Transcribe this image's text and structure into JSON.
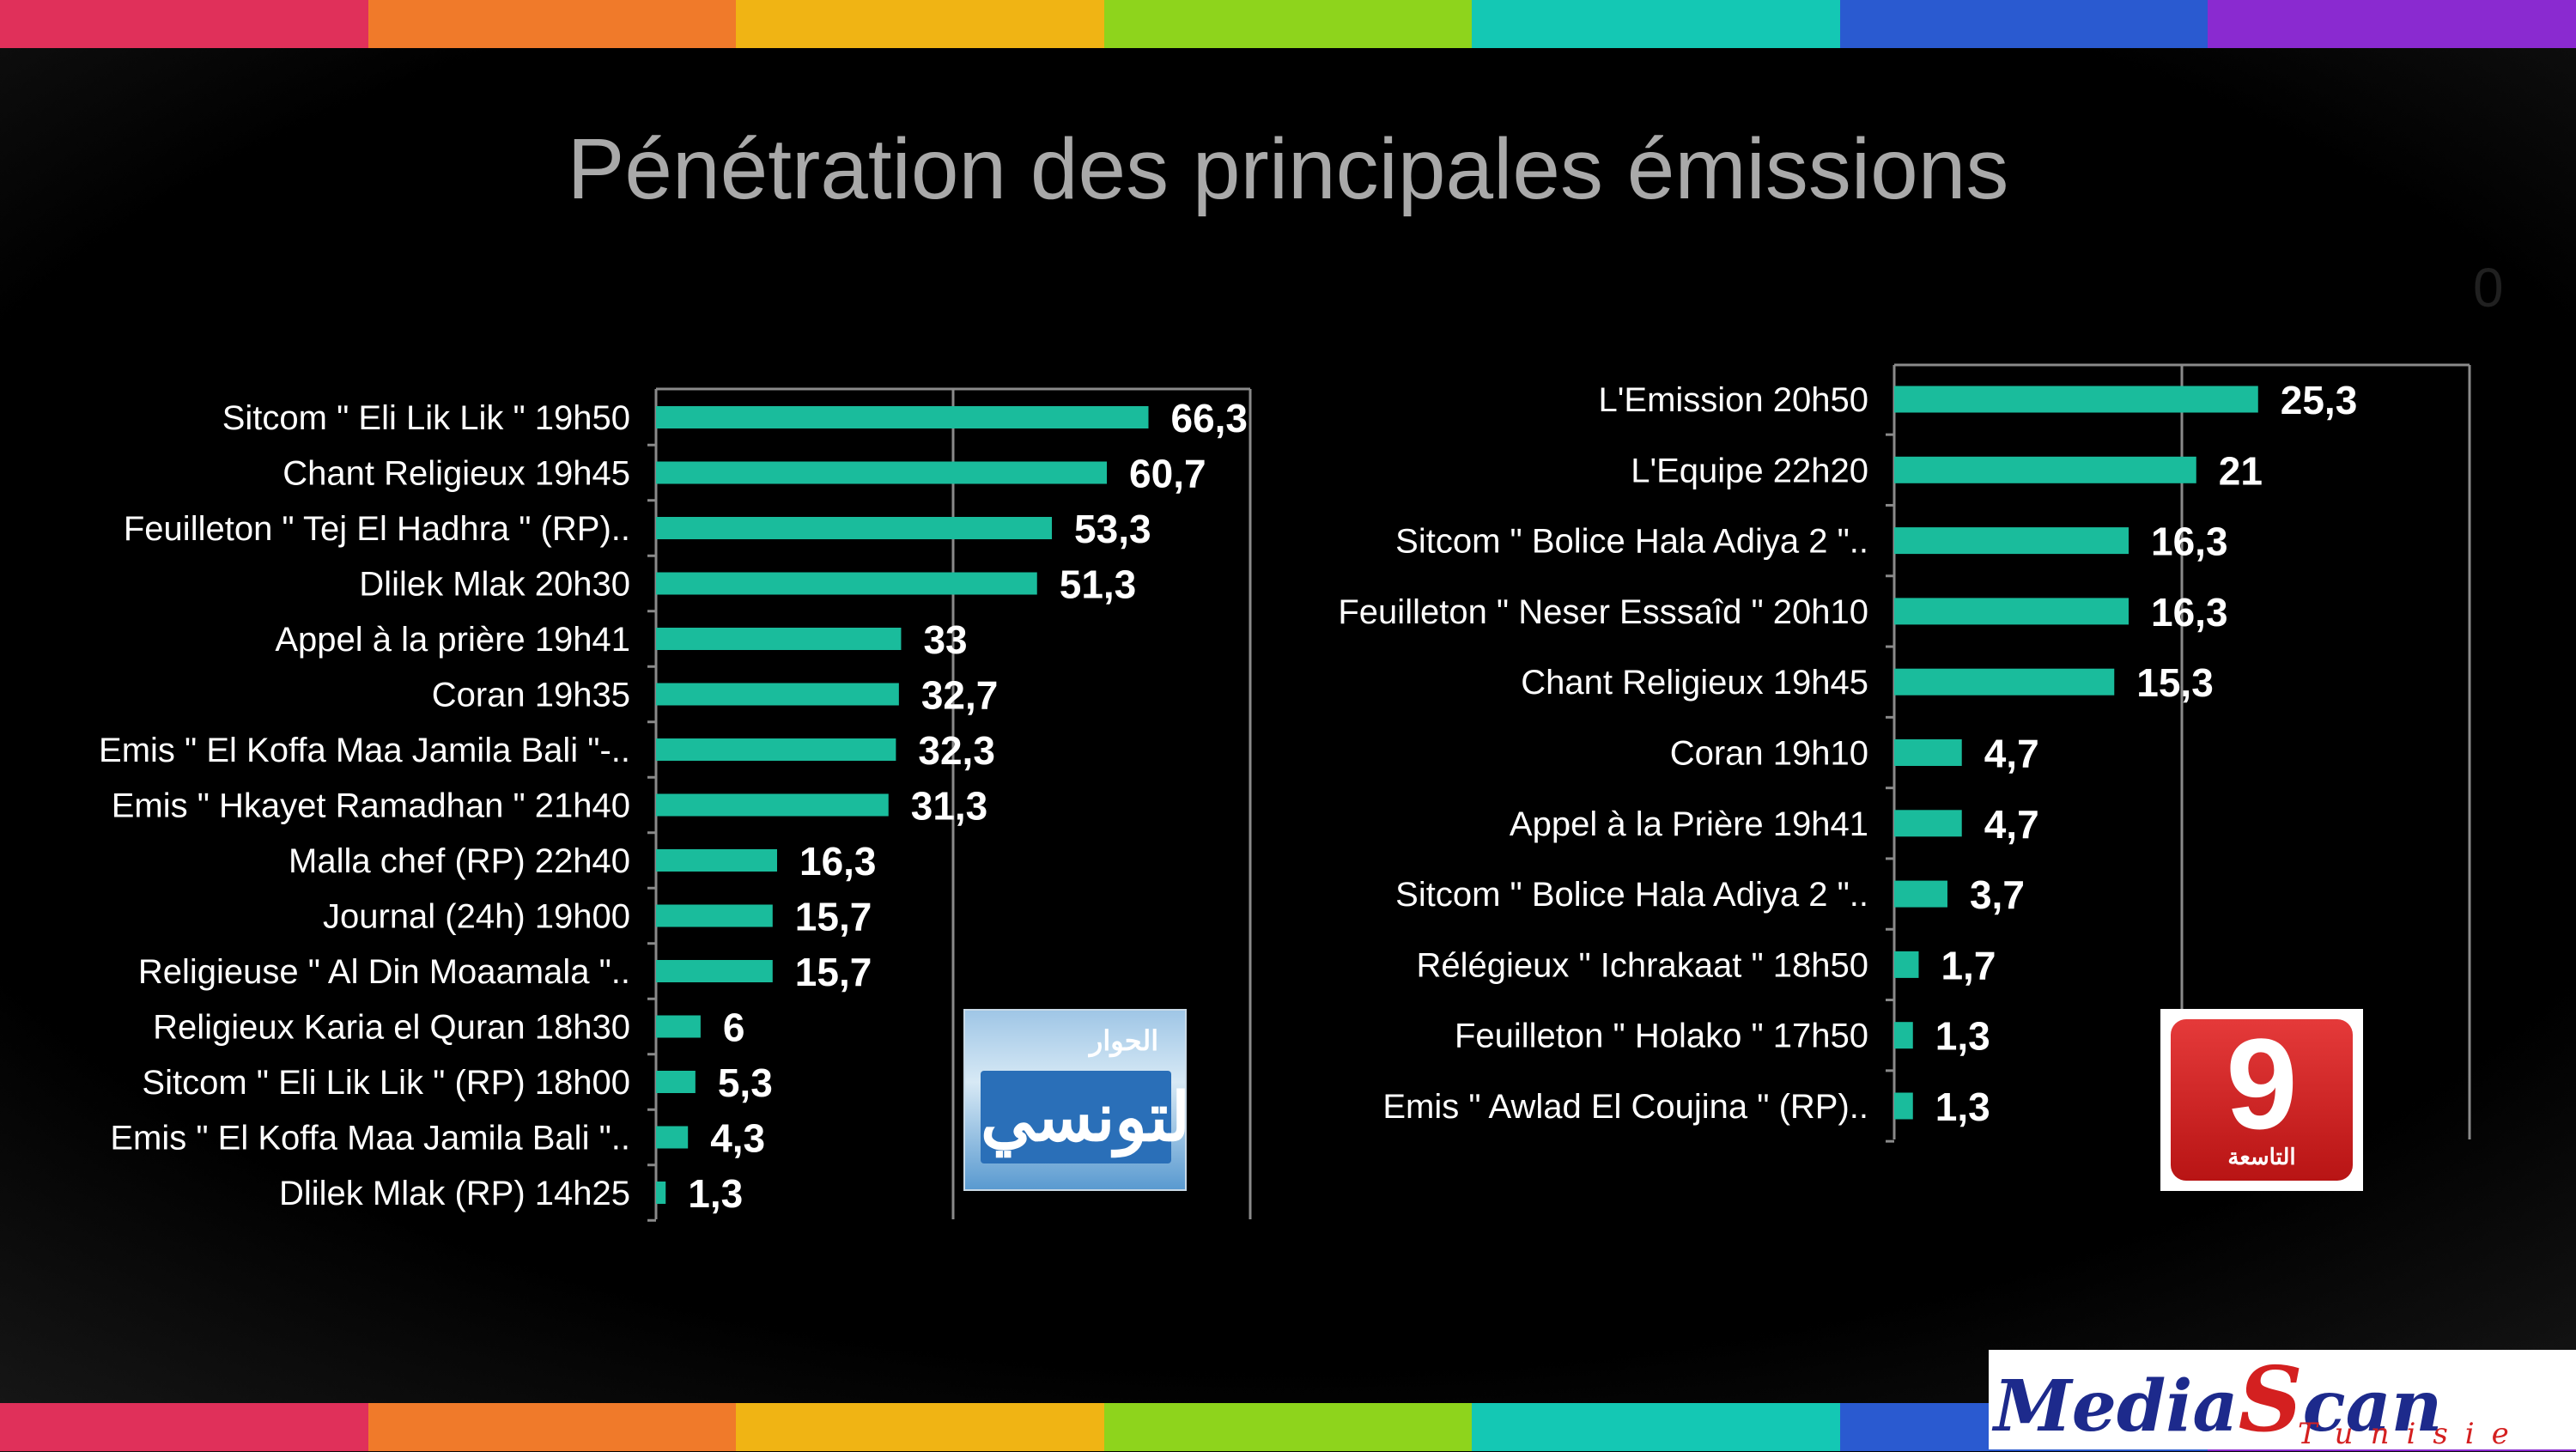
{
  "slide": {
    "title": "Pénétration des principales émissions",
    "stray_char": "0",
    "stripe_colors": [
      "#e0305a",
      "#f07a2a",
      "#f0b414",
      "#8ed41c",
      "#14c8b4",
      "#2a5ad0",
      "#8a2ad0"
    ]
  },
  "logos": {
    "left": {
      "top_text": "الحوار",
      "sign_text": "التونسي"
    },
    "right": {
      "numeral": "9",
      "word": "التاسعة"
    },
    "mediascan": {
      "media": "Media",
      "s": "S",
      "can": "can",
      "tagline": "Tunisie"
    }
  },
  "colors": {
    "bar": "#1abc9c",
    "text": "#ffffff",
    "title": "#a9a9a9",
    "grid": "#8a8a8a"
  },
  "chart_data": [
    {
      "type": "bar",
      "orientation": "horizontal",
      "title": "",
      "xlabel": "",
      "ylabel": "",
      "xlim": [
        0,
        80
      ],
      "grid": true,
      "categories": [
        "Sitcom \" Eli Lik Lik \" 19h50",
        "Chant Religieux  19h45",
        "Feuilleton \" Tej El Hadhra \" (RP)..",
        "Dlilek Mlak 20h30",
        "Appel à la prière  19h41",
        "Coran 19h35",
        "Emis \" El Koffa Maa Jamila Bali \"-..",
        "Emis \" Hkayet Ramadhan \" 21h40",
        "Malla chef (RP) 22h40",
        "Journal (24h)  19h00",
        "Religieuse \" Al Din Moaamala \"..",
        "Religieux Karia el Quran  18h30",
        "Sitcom \" Eli Lik Lik \" (RP) 18h00",
        "Emis \" El Koffa Maa Jamila Bali \"..",
        "Dlilek Mlak (RP) 14h25"
      ],
      "values": [
        66.3,
        60.7,
        53.3,
        51.3,
        33,
        32.7,
        32.3,
        31.3,
        16.3,
        15.7,
        15.7,
        6,
        5.3,
        4.3,
        1.3
      ],
      "labels": [
        "66,3",
        "60,7",
        "53,3",
        "51,3",
        "33",
        "32,7",
        "32,3",
        "31,3",
        "16,3",
        "15,7",
        "15,7",
        "6",
        "5,3",
        "4,3",
        "1,3"
      ]
    },
    {
      "type": "bar",
      "orientation": "horizontal",
      "title": "",
      "xlabel": "",
      "ylabel": "",
      "xlim": [
        0,
        40
      ],
      "grid": true,
      "categories": [
        "L'Emission 20h50",
        "L'Equipe 22h20",
        "Sitcom \" Bolice Hala Adiya 2 \"..",
        "Feuilleton \" Neser Esssaîd \" 20h10",
        "Chant Religieux 19h45",
        "Coran  19h10",
        "Appel à la Prière 19h41",
        "Sitcom \" Bolice Hala Adiya 2 \"..",
        "Rélégieux \" Ichrakaat \" 18h50",
        "Feuilleton \" Holako \" 17h50",
        "Emis \" Awlad El Coujina \" (RP).."
      ],
      "values": [
        25.3,
        21,
        16.3,
        16.3,
        15.3,
        4.7,
        4.7,
        3.7,
        1.7,
        1.3,
        1.3
      ],
      "labels": [
        "25,3",
        "21",
        "16,3",
        "16,3",
        "15,3",
        "4,7",
        "4,7",
        "3,7",
        "1,7",
        "1,3",
        "1,3"
      ]
    }
  ]
}
